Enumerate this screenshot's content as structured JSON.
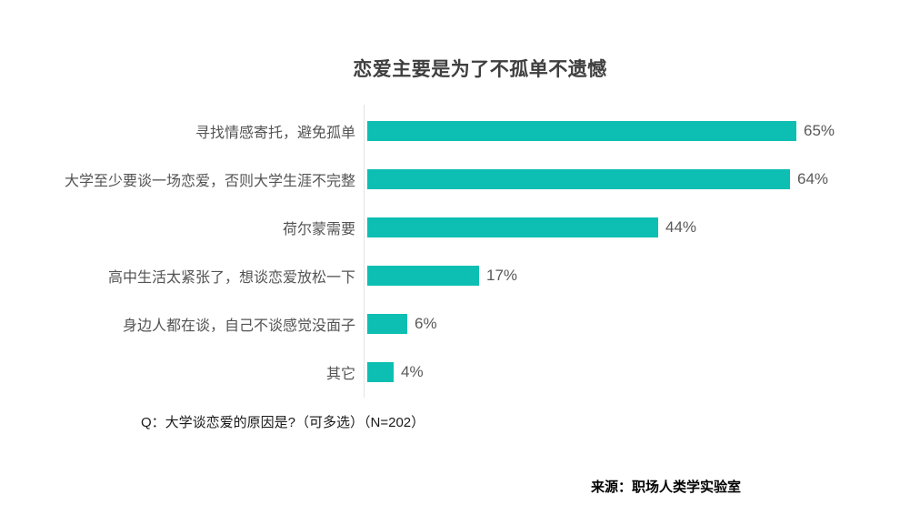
{
  "title": "恋爱主要是为了不孤单不遗憾",
  "chart_data": {
    "type": "bar",
    "orientation": "horizontal",
    "title": "恋爱主要是为了不孤单不遗憾",
    "categories": [
      "寻找情感寄托，避免孤单",
      "大学至少要谈一场恋爱，否则大学生涯不完整",
      "荷尔蒙需要",
      "高中生活太紧张了，想谈恋爱放松一下",
      "身边人都在谈，自己不谈感觉没面子",
      "其它"
    ],
    "values": [
      65,
      64,
      44,
      17,
      6,
      4
    ],
    "value_labels": [
      "65%",
      "64%",
      "44%",
      "17%",
      "6%",
      "4%"
    ],
    "xlabel": "",
    "ylabel": "",
    "xlim": [
      0,
      70
    ],
    "grid": false,
    "legend": false,
    "bar_color": "#0dbfb2",
    "axis_line_color": "#e4e4e4"
  },
  "footnote": "Q：大学谈恋爱的原因是?（可多选）（N=202）",
  "source": "来源：职场人类学实验室"
}
